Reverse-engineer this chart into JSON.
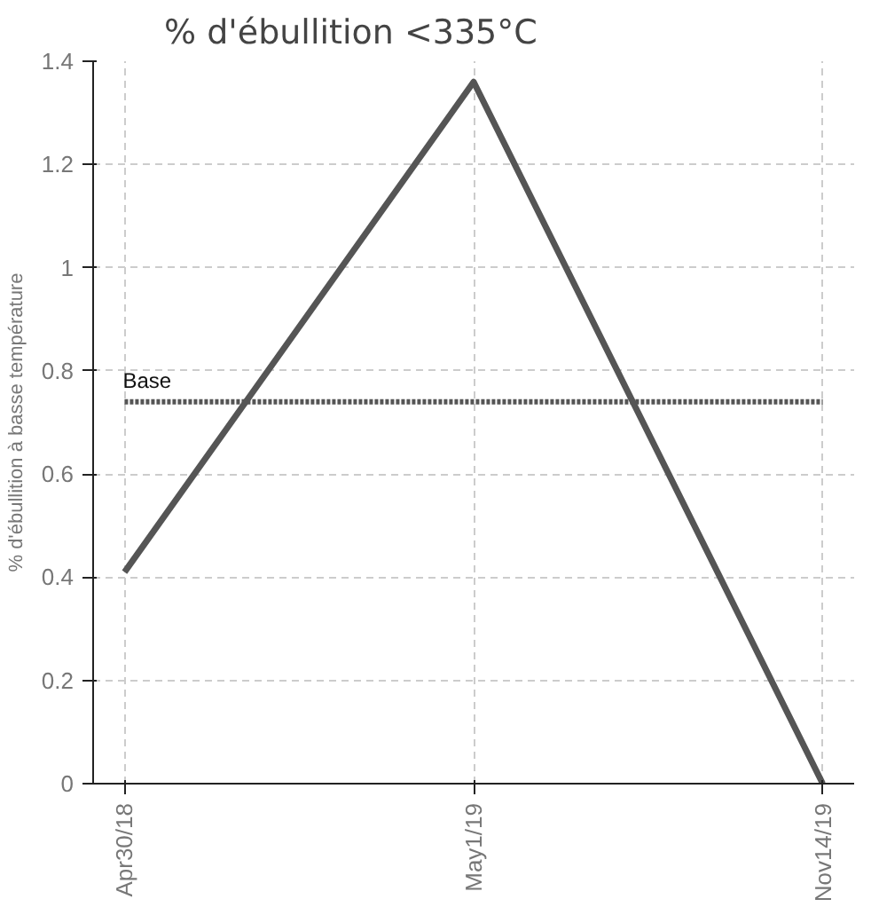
{
  "chart_data": {
    "type": "line",
    "title": "% d'ébullition <335°C",
    "ylabel": "% d'ébullition à basse température",
    "categories": [
      "Apr30/18",
      "May1/19",
      "Nov14/19"
    ],
    "series": [
      {
        "color": "#555555",
        "values": [
          0.41,
          1.36,
          0
        ]
      }
    ],
    "ylim": [
      0,
      1.4
    ],
    "yticks": [
      0,
      0.2,
      0.4,
      0.6,
      0.8,
      1,
      1.2,
      1.4
    ],
    "grid": true,
    "line_style": "solid",
    "ref_lines": [
      {
        "axis": "y",
        "value": 0.74,
        "label": "Base",
        "color": "#555555",
        "line_style": "dotted"
      }
    ]
  }
}
